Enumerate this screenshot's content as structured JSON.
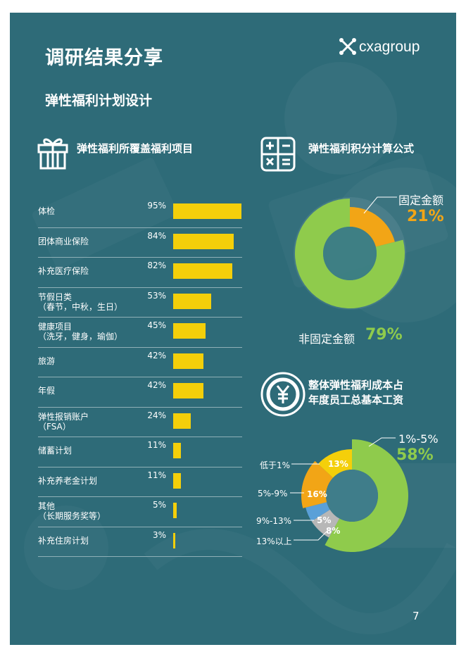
{
  "page_title": "调研结果分享",
  "logo_text": "cxagroup",
  "subtitle": "弹性福利计划设计",
  "coverage": {
    "title": "弹性福利所覆盖福利项目",
    "icon": "gift-icon",
    "items": [
      {
        "label": "体检",
        "sub": "",
        "pct_text": "95%",
        "value": 95
      },
      {
        "label": "团体商业保险",
        "sub": "",
        "pct_text": "84%",
        "value": 84
      },
      {
        "label": "补充医疗保险",
        "sub": "",
        "pct_text": "82%",
        "value": 82
      },
      {
        "label": "节假日类",
        "sub": "（春节，中秋，生日）",
        "pct_text": "53%",
        "value": 53
      },
      {
        "label": "健康项目",
        "sub": "（洗牙，健身，瑜伽）",
        "pct_text": "45%",
        "value": 45
      },
      {
        "label": "旅游",
        "sub": "",
        "pct_text": "42%",
        "value": 42
      },
      {
        "label": "年假",
        "sub": "",
        "pct_text": "42%",
        "value": 42
      },
      {
        "label": "弹性报销账户",
        "sub": "（FSA）",
        "pct_text": "24%",
        "value": 24
      },
      {
        "label": "储蓄计划",
        "sub": "",
        "pct_text": "11%",
        "value": 11
      },
      {
        "label": "补充养老金计划",
        "sub": "",
        "pct_text": "11%",
        "value": 11
      },
      {
        "label": "其他",
        "sub": "（长期服务奖等）",
        "pct_text": "5%",
        "value": 5
      },
      {
        "label": "补充住房计划",
        "sub": "",
        "pct_text": "3%",
        "value": 3
      }
    ]
  },
  "formula": {
    "title": "弹性福利积分计算公式",
    "icon": "calculator-icon",
    "fixed_label": "固定金额",
    "fixed_pct": "21%",
    "nonfixed_label": "非固定金额",
    "nonfixed_pct": "79%"
  },
  "cost": {
    "title_line1": "整体弹性福利成本占",
    "title_line2": "年度员工总基本工资",
    "icon": "yen-coin-icon",
    "main_label": "1%-5%",
    "main_pct": "58%",
    "labels": {
      "lt1": "低于1%",
      "r5_9": "5%-9%",
      "r9_13": "9%-13%",
      "gt13": "13%以上"
    },
    "slice_texts": {
      "lt1": "13%",
      "r5_9": "16%",
      "r9_13": "5%",
      "gt13": "8%"
    }
  },
  "page_number": "7",
  "chart_data": [
    {
      "type": "bar",
      "title": "弹性福利所覆盖福利项目",
      "categories": [
        "体检",
        "团体商业保险",
        "补充医疗保险",
        "节假日类（春节，中秋，生日）",
        "健康项目（洗牙，健身，瑜伽）",
        "旅游",
        "年假",
        "弹性报销账户（FSA）",
        "储蓄计划",
        "补充养老金计划",
        "其他（长期服务奖等）",
        "补充住房计划"
      ],
      "values": [
        95,
        84,
        82,
        53,
        45,
        42,
        42,
        24,
        11,
        11,
        5,
        3
      ],
      "orientation": "horizontal",
      "color": "#f4cf0a"
    },
    {
      "type": "pie",
      "title": "弹性福利积分计算公式",
      "categories": [
        "固定金额",
        "非固定金额"
      ],
      "values": [
        21,
        79
      ],
      "colors": [
        "#f2a516",
        "#8fcb4c"
      ]
    },
    {
      "type": "pie",
      "title": "整体弹性福利成本占年度员工总基本工资",
      "categories": [
        "1%-5%",
        "13%以上",
        "9%-13%",
        "5%-9%",
        "低于1%"
      ],
      "values": [
        58,
        8,
        5,
        16,
        13
      ],
      "colors": [
        "#8fcb4c",
        "#b7b7b7",
        "#5aa0d8",
        "#f2a516",
        "#f4cf0a"
      ]
    }
  ]
}
